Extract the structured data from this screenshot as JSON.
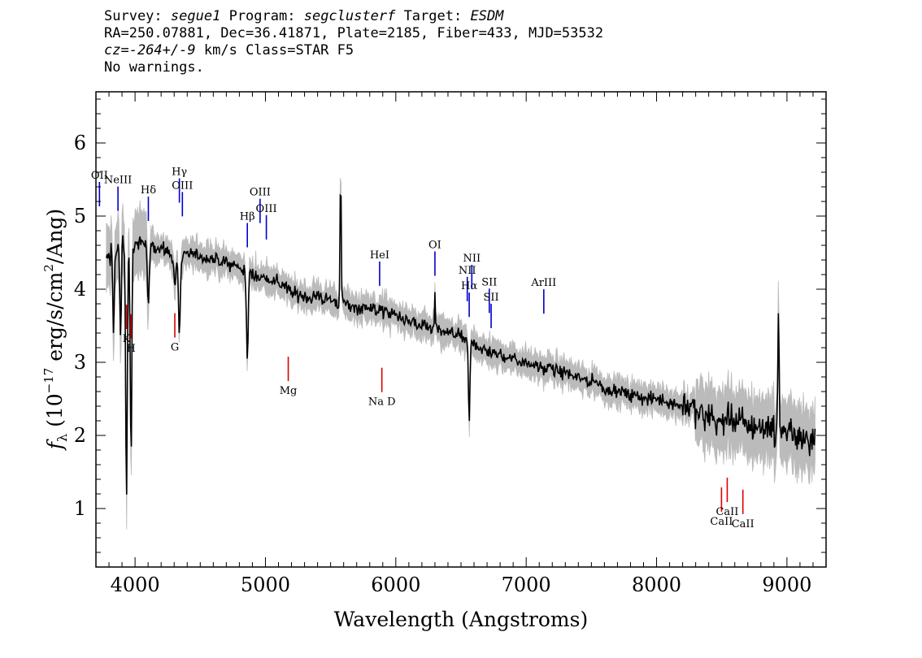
{
  "header": {
    "survey_label": "Survey:",
    "survey": "segue1",
    "program_label": "Program:",
    "program": "segclusterf",
    "target_label": "Target:",
    "target": "ESDM",
    "line2": "RA=250.07881, Dec=36.41871, Plate=2185, Fiber=433, MJD=53532",
    "cz_label": "cz=",
    "cz_value": "-264+/-9",
    "cz_unit": "km/s",
    "class_text": "Class=STAR F5",
    "line4": "No warnings."
  },
  "chart_data": {
    "type": "line",
    "xlabel": "Wavelength (Angstroms)",
    "ylabel": "f_λ (10^-17 erg/s/cm^2/Ang)",
    "xlim": [
      3700,
      9300
    ],
    "ylim": [
      0.2,
      6.7
    ],
    "xticks": [
      4000,
      5000,
      6000,
      7000,
      8000,
      9000
    ],
    "yticks": [
      1,
      2,
      3,
      4,
      5,
      6
    ],
    "grid": false,
    "colors": {
      "flux": "#000000",
      "error_band": "#bbbbbb",
      "emission": "#0000cc",
      "absorption": "#dd0000"
    },
    "series": [
      {
        "x": [
          3800,
          3850,
          3900,
          3950,
          4000,
          4050,
          4100,
          4150,
          4200,
          4250,
          4300,
          4350,
          4400,
          4450,
          4500,
          4600,
          4700,
          4800,
          4900,
          5000,
          5100,
          5200,
          5300,
          5400,
          5500,
          5600,
          5700,
          5800,
          5900,
          6000,
          6100,
          6200,
          6300,
          6400,
          6500,
          6600,
          6700,
          6800,
          6900,
          7000,
          7100,
          7200,
          7300,
          7400,
          7500,
          7600,
          7700,
          7800,
          7900,
          8000,
          8100,
          8200,
          8300,
          8400,
          8500,
          8600,
          8700,
          8800,
          8900,
          9000,
          9100,
          9200
        ],
        "values": [
          4.4,
          4.5,
          4.6,
          4.55,
          4.6,
          4.65,
          4.6,
          4.6,
          4.55,
          4.5,
          4.45,
          4.45,
          4.5,
          4.45,
          4.45,
          4.4,
          4.35,
          4.3,
          4.2,
          4.15,
          4.1,
          3.95,
          3.9,
          3.9,
          3.85,
          3.8,
          3.75,
          3.75,
          3.7,
          3.65,
          3.55,
          3.5,
          3.45,
          3.4,
          3.35,
          3.25,
          3.15,
          3.1,
          3.05,
          3.0,
          2.95,
          2.9,
          2.85,
          2.8,
          2.75,
          2.65,
          2.6,
          2.55,
          2.5,
          2.5,
          2.45,
          2.4,
          2.35,
          2.25,
          2.2,
          2.2,
          2.15,
          2.1,
          2.1,
          2.05,
          2.0,
          1.9
        ]
      }
    ],
    "emission_lines": [
      {
        "label": "OII",
        "x": 3727
      },
      {
        "label": "NeIII",
        "x": 3869
      },
      {
        "label": "Hδ",
        "x": 4102
      },
      {
        "label": "Hγ",
        "x": 4340
      },
      {
        "label": "OIII",
        "x": 4363
      },
      {
        "label": "Hβ",
        "x": 4861
      },
      {
        "label": "OIII",
        "x": 4959
      },
      {
        "label": "OIII",
        "x": 5007
      },
      {
        "label": "HeI",
        "x": 5876
      },
      {
        "label": "OI",
        "x": 6300
      },
      {
        "label": "NII",
        "x": 6548
      },
      {
        "label": "Hα",
        "x": 6563
      },
      {
        "label": "NII",
        "x": 6583
      },
      {
        "label": "SII",
        "x": 6717
      },
      {
        "label": "SII",
        "x": 6731
      },
      {
        "label": "ArIII",
        "x": 7135
      }
    ],
    "absorption_lines": [
      {
        "label": "K",
        "x": 3934
      },
      {
        "label": "H",
        "x": 3969
      },
      {
        "label": "G",
        "x": 4305
      },
      {
        "label": "Mg",
        "x": 5175
      },
      {
        "label": "Na D",
        "x": 5893
      },
      {
        "label": "CaII",
        "x": 8498
      },
      {
        "label": "CaII",
        "x": 8542
      },
      {
        "label": "CaII",
        "x": 8662
      }
    ]
  }
}
